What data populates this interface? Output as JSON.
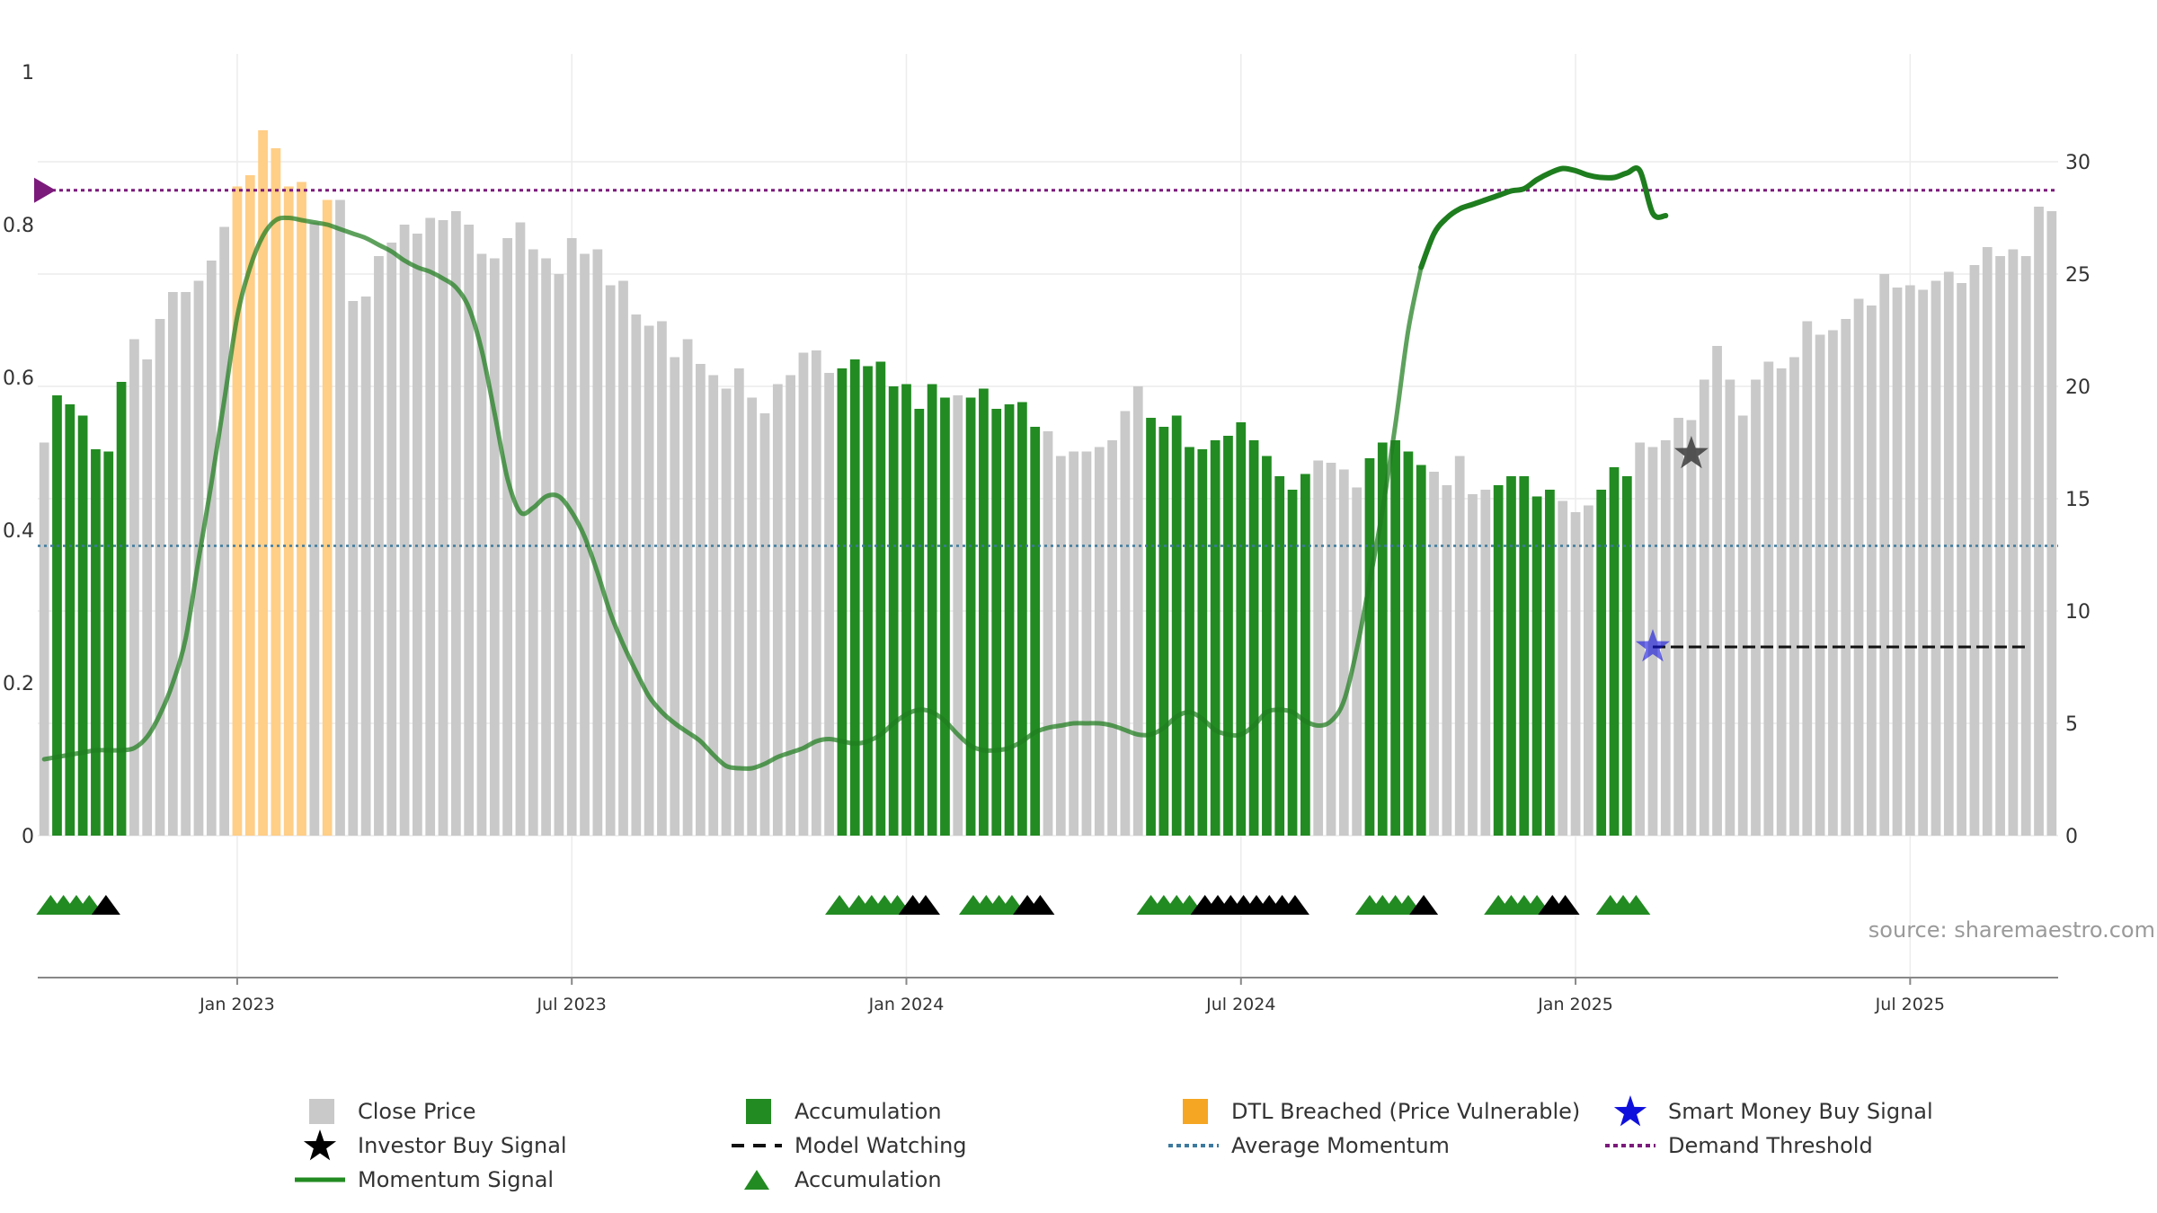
{
  "chart_data": {
    "type": "bar",
    "source": "source: sharemaestro.com",
    "left_axis": {
      "ylim": [
        0,
        1
      ],
      "ticks": [
        "0",
        "0.2",
        "0.4",
        "0.6",
        "0.8",
        "1"
      ]
    },
    "right_axis": {
      "ylim": [
        0,
        34
      ],
      "ticks": [
        "0",
        "5",
        "10",
        "15",
        "20",
        "25",
        "30"
      ]
    },
    "x_ticks": [
      "Jan 2023",
      "Jul 2023",
      "Jan 2024",
      "Jul 2024",
      "Jan 2025",
      "Jul 2025"
    ],
    "x_tick_weeks": [
      15,
      41,
      67,
      93,
      119,
      145
    ],
    "grid": true,
    "legend_position": "bottom",
    "colors": {
      "close": "#c9c9c9",
      "accumulation": "#228b22",
      "dtl": "#ffce87",
      "momentum": "#1e7d1e",
      "average": "#3d7a9e",
      "demand": "#7b1a7b",
      "smart_money": "#1010dd",
      "investor": "#000000"
    },
    "close_price": [
      17.5,
      19.6,
      19.2,
      18.7,
      17.2,
      17.1,
      20.2,
      22.1,
      21.2,
      23.0,
      24.2,
      24.2,
      24.7,
      25.6,
      27.1,
      28.9,
      29.4,
      31.4,
      30.6,
      28.9,
      29.1,
      27.3,
      28.3,
      28.3,
      23.8,
      24.0,
      25.8,
      26.4,
      27.2,
      26.8,
      27.5,
      27.4,
      27.8,
      27.2,
      25.9,
      25.7,
      26.6,
      27.3,
      26.1,
      25.7,
      25.0,
      26.6,
      25.9,
      26.1,
      24.5,
      24.7,
      23.2,
      22.7,
      22.9,
      21.3,
      22.1,
      21.0,
      20.5,
      19.9,
      20.8,
      19.5,
      18.8,
      20.1,
      20.5,
      21.5,
      21.6,
      20.6,
      20.8,
      21.2,
      20.9,
      21.1,
      20.0,
      20.1,
      19.0,
      20.1,
      19.5,
      19.6,
      19.5,
      19.9,
      19.0,
      19.2,
      19.3,
      18.2,
      18.0,
      16.9,
      17.1,
      17.1,
      17.3,
      17.6,
      18.9,
      20.0,
      18.6,
      18.2,
      18.7,
      17.3,
      17.2,
      17.6,
      17.8,
      18.4,
      17.6,
      16.9,
      16.0,
      15.4,
      16.1,
      16.7,
      16.6,
      16.3,
      15.5,
      16.8,
      17.5,
      17.6,
      17.1,
      16.5,
      16.2,
      15.6,
      16.9,
      15.2,
      15.4,
      15.6,
      16.0,
      16.0,
      15.1,
      15.4,
      14.9,
      14.4,
      14.7,
      15.4,
      16.4,
      16.0,
      17.5,
      17.3,
      17.6,
      18.6,
      18.5,
      20.3,
      21.8,
      20.3,
      18.7,
      20.3,
      21.1,
      20.8,
      21.3,
      22.9,
      22.3,
      22.5,
      23.0,
      23.9,
      23.6,
      25.0,
      24.4,
      24.5,
      24.3,
      24.7,
      25.1,
      24.6,
      25.4,
      26.2,
      25.8,
      26.1,
      25.8,
      28.0,
      27.8
    ],
    "accumulation_weeks": [
      1,
      2,
      3,
      4,
      5,
      6,
      62,
      63,
      64,
      65,
      66,
      67,
      68,
      69,
      70,
      72,
      73,
      74,
      75,
      76,
      77,
      86,
      87,
      88,
      89,
      90,
      91,
      92,
      93,
      94,
      95,
      96,
      97,
      98,
      103,
      104,
      105,
      106,
      107,
      113,
      114,
      115,
      116,
      117,
      121,
      122,
      123
    ],
    "dtl_weeks": [
      15,
      16,
      17,
      18,
      19,
      20,
      22
    ],
    "momentum": [
      3.4,
      3.5,
      3.6,
      3.7,
      3.8,
      3.8,
      3.8,
      3.9,
      4.4,
      5.4,
      6.8,
      8.8,
      12.3,
      15.7,
      19.4,
      23.1,
      25.3,
      26.7,
      27.4,
      27.5,
      27.4,
      27.3,
      27.2,
      27.0,
      26.8,
      26.6,
      26.3,
      26.0,
      25.6,
      25.3,
      25.1,
      24.8,
      24.4,
      23.5,
      21.6,
      18.8,
      15.9,
      14.4,
      14.6,
      15.1,
      15.1,
      14.4,
      13.3,
      11.7,
      9.9,
      8.5,
      7.3,
      6.2,
      5.5,
      5.0,
      4.6,
      4.2,
      3.6,
      3.1,
      3.0,
      3.0,
      3.2,
      3.5,
      3.7,
      3.9,
      4.2,
      4.3,
      4.2,
      4.1,
      4.2,
      4.5,
      5.0,
      5.4,
      5.6,
      5.5,
      5.1,
      4.5,
      4.0,
      3.8,
      3.8,
      3.9,
      4.2,
      4.6,
      4.8,
      4.9,
      5.0,
      5.0,
      5.0,
      4.9,
      4.7,
      4.5,
      4.5,
      4.8,
      5.3,
      5.5,
      5.2,
      4.7,
      4.5,
      4.5,
      4.9,
      5.5,
      5.6,
      5.5,
      5.1,
      4.9,
      5.1,
      6.0,
      8.3,
      11.3,
      14.5,
      18.3,
      22.5,
      25.3,
      26.8,
      27.5,
      27.9,
      28.1,
      28.3,
      28.5,
      28.7,
      28.8,
      29.2,
      29.5,
      29.7,
      29.6,
      29.4,
      29.3,
      29.3,
      29.5,
      29.6,
      27.7,
      27.6
    ],
    "momentum_start_week": 0,
    "average_momentum": 12.9,
    "demand_threshold": 0.845,
    "smart_money_signal": {
      "week": 125,
      "value": 8.4
    },
    "investor_buy_signal": {
      "week": 128,
      "value": 17.0
    },
    "model_watching": {
      "start_week": 125,
      "end_week": 154,
      "value": 8.4
    },
    "markers": [
      {
        "week": 0.5,
        "color": "green"
      },
      {
        "week": 1.5,
        "color": "green"
      },
      {
        "week": 2.5,
        "color": "green"
      },
      {
        "week": 3.5,
        "color": "green"
      },
      {
        "week": 4.8,
        "color": "black"
      },
      {
        "week": 61.8,
        "color": "green"
      },
      {
        "week": 63.3,
        "color": "green"
      },
      {
        "week": 64.3,
        "color": "green"
      },
      {
        "week": 65.3,
        "color": "green"
      },
      {
        "week": 66.3,
        "color": "green"
      },
      {
        "week": 67.5,
        "color": "black"
      },
      {
        "week": 68.5,
        "color": "black"
      },
      {
        "week": 72.2,
        "color": "green"
      },
      {
        "week": 73.2,
        "color": "green"
      },
      {
        "week": 74.2,
        "color": "green"
      },
      {
        "week": 75.2,
        "color": "green"
      },
      {
        "week": 76.4,
        "color": "black"
      },
      {
        "week": 77.4,
        "color": "black"
      },
      {
        "week": 86.0,
        "color": "green"
      },
      {
        "week": 87.0,
        "color": "green"
      },
      {
        "week": 88.0,
        "color": "green"
      },
      {
        "week": 89.0,
        "color": "green"
      },
      {
        "week": 90.2,
        "color": "black"
      },
      {
        "week": 91.2,
        "color": "black"
      },
      {
        "week": 92.2,
        "color": "black"
      },
      {
        "week": 93.2,
        "color": "black"
      },
      {
        "week": 94.2,
        "color": "black"
      },
      {
        "week": 95.2,
        "color": "black"
      },
      {
        "week": 96.2,
        "color": "black"
      },
      {
        "week": 97.2,
        "color": "black"
      },
      {
        "week": 103.0,
        "color": "green"
      },
      {
        "week": 104.0,
        "color": "green"
      },
      {
        "week": 105.0,
        "color": "green"
      },
      {
        "week": 106.0,
        "color": "green"
      },
      {
        "week": 107.2,
        "color": "black"
      },
      {
        "week": 113.0,
        "color": "green"
      },
      {
        "week": 114.0,
        "color": "green"
      },
      {
        "week": 115.0,
        "color": "green"
      },
      {
        "week": 116.0,
        "color": "green"
      },
      {
        "week": 117.2,
        "color": "black"
      },
      {
        "week": 118.2,
        "color": "black"
      },
      {
        "week": 121.7,
        "color": "green"
      },
      {
        "week": 122.7,
        "color": "green"
      },
      {
        "week": 123.7,
        "color": "green"
      }
    ],
    "legend": [
      {
        "key": "close",
        "label": "Close Price"
      },
      {
        "key": "accum_bar",
        "label": "Accumulation"
      },
      {
        "key": "dtl",
        "label": "DTL Breached (Price Vulnerable)"
      },
      {
        "key": "smart",
        "label": "Smart Money Buy Signal"
      },
      {
        "key": "investor",
        "label": "Investor Buy Signal"
      },
      {
        "key": "model",
        "label": "Model Watching"
      },
      {
        "key": "avg",
        "label": "Average Momentum"
      },
      {
        "key": "demand",
        "label": "Demand Threshold"
      },
      {
        "key": "momentum",
        "label": "Momentum Signal"
      },
      {
        "key": "accum_tri",
        "label": "Accumulation"
      }
    ]
  }
}
